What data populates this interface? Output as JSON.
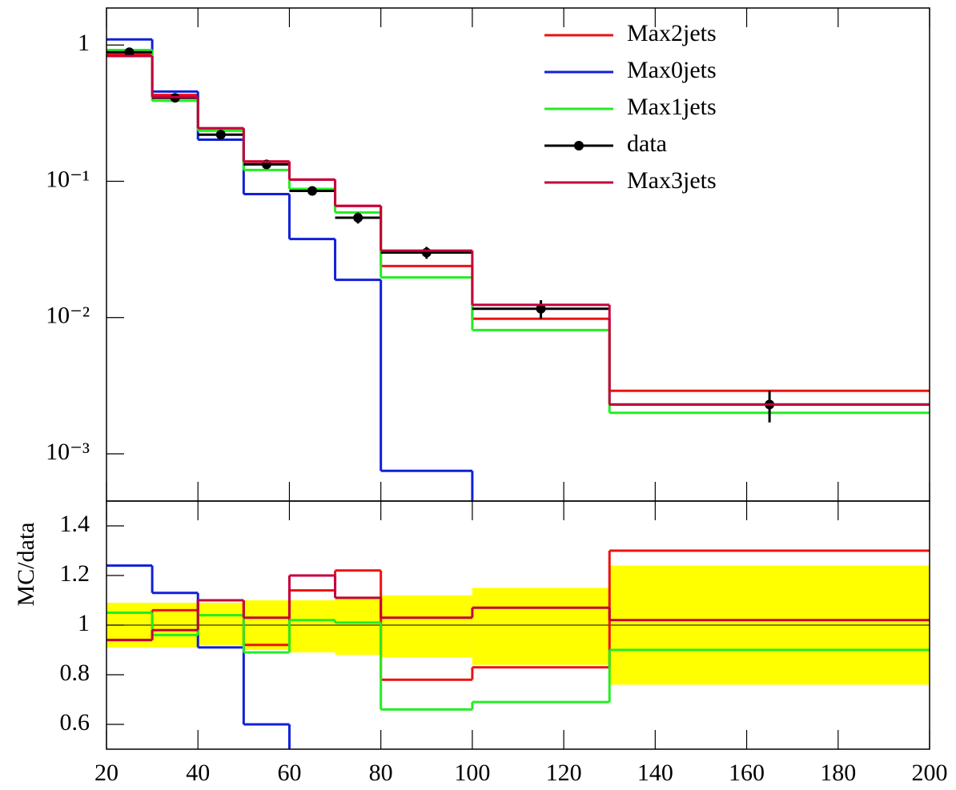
{
  "chart_data": [
    {
      "type": "histogram",
      "bins": [
        20,
        30,
        40,
        50,
        60,
        70,
        80,
        100,
        130,
        200
      ],
      "xlim": [
        20,
        200
      ],
      "xticks": [
        20,
        40,
        60,
        80,
        100,
        120,
        140,
        160,
        180,
        200
      ],
      "log_y": true,
      "ylim": [
        0.00045,
        1.87
      ],
      "yticks": [
        {
          "value": 0.001,
          "label": "10⁻³"
        },
        {
          "value": 0.01,
          "label": "10⁻²"
        },
        {
          "value": 0.1,
          "label": "10⁻¹"
        },
        1
      ],
      "legend_position": "upper right",
      "series": [
        {
          "name": "Max2jets",
          "color": "#ee1111",
          "values": [
            0.85,
            0.43,
            0.245,
            0.14,
            0.103,
            0.066,
            0.0239,
            0.0098,
            0.0029
          ]
        },
        {
          "name": "Max0jets",
          "color": "#1020d8",
          "values": [
            1.1,
            0.456,
            0.202,
            0.0805,
            0.0377,
            0.0189,
            0.00075,
            null,
            null
          ]
        },
        {
          "name": "Max1jets",
          "color": "#22ee22",
          "values": [
            0.92,
            0.39,
            0.235,
            0.121,
            0.088,
            0.059,
            0.0197,
            0.0081,
            0.002
          ]
        },
        {
          "name": "data",
          "color": "#000000",
          "markers": true,
          "values": [
            0.885,
            0.41,
            0.22,
            0.133,
            0.085,
            0.054,
            0.03,
            0.0116,
            0.0023
          ],
          "errors": [
            0.05,
            0.02,
            0.012,
            0.008,
            0.006,
            0.005,
            0.003,
            0.0018,
            0.0006
          ]
        },
        {
          "name": "Max3jets",
          "color": "#c4003c",
          "values": [
            0.83,
            0.415,
            0.245,
            0.139,
            0.103,
            0.066,
            0.031,
            0.0124,
            0.0023
          ]
        }
      ]
    },
    {
      "type": "histogram",
      "y_label": "MC/data",
      "bins": [
        20,
        30,
        40,
        50,
        60,
        70,
        80,
        100,
        130,
        200
      ],
      "xlim": [
        20,
        200
      ],
      "xticks": [
        20,
        40,
        60,
        80,
        100,
        120,
        140,
        160,
        180,
        200
      ],
      "ylim": [
        0.5,
        1.5
      ],
      "yticks": [
        0.6,
        0.8,
        1,
        1.2,
        1.4
      ],
      "reference_line": 1,
      "band": {
        "color": "#ffff00",
        "lower": [
          0.91,
          0.91,
          0.92,
          0.9,
          0.89,
          0.88,
          0.87,
          0.84,
          0.76
        ],
        "upper": [
          1.09,
          1.09,
          1.09,
          1.1,
          1.1,
          1.11,
          1.12,
          1.15,
          1.24
        ]
      },
      "series": [
        {
          "color": "#ee1111",
          "values": [
            0.94,
            1.06,
            1.1,
            0.92,
            1.14,
            1.22,
            0.78,
            0.83,
            1.3
          ]
        },
        {
          "color": "#1020d8",
          "values": [
            1.24,
            1.13,
            0.91,
            0.6,
            null,
            null,
            null,
            null,
            null
          ]
        },
        {
          "color": "#22ee22",
          "values": [
            1.05,
            0.96,
            1.04,
            0.89,
            1.02,
            1.01,
            0.66,
            0.69,
            0.9
          ]
        },
        {
          "color": "#c4003c",
          "values": [
            0.94,
            0.98,
            1.1,
            1.03,
            1.2,
            1.11,
            1.03,
            1.07,
            1.02
          ]
        }
      ]
    }
  ]
}
